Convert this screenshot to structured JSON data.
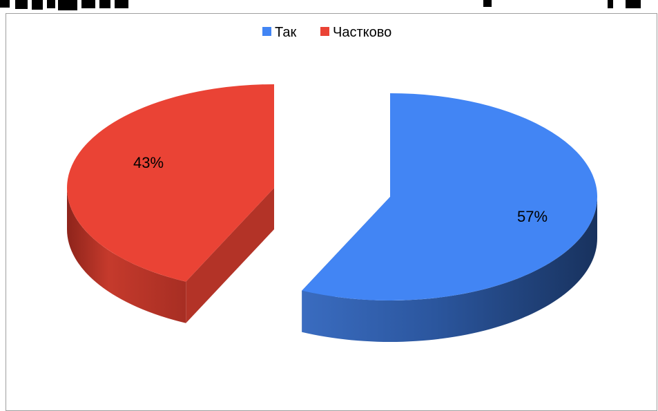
{
  "chart_data": {
    "type": "pie",
    "title": "",
    "categories": [
      "Так",
      "Частково"
    ],
    "values": [
      57,
      43
    ],
    "data_labels": [
      "57%",
      "43%"
    ],
    "colors": [
      "#4285f4",
      "#ea4335"
    ],
    "legend_position": "top",
    "style": "3d-exploded"
  }
}
